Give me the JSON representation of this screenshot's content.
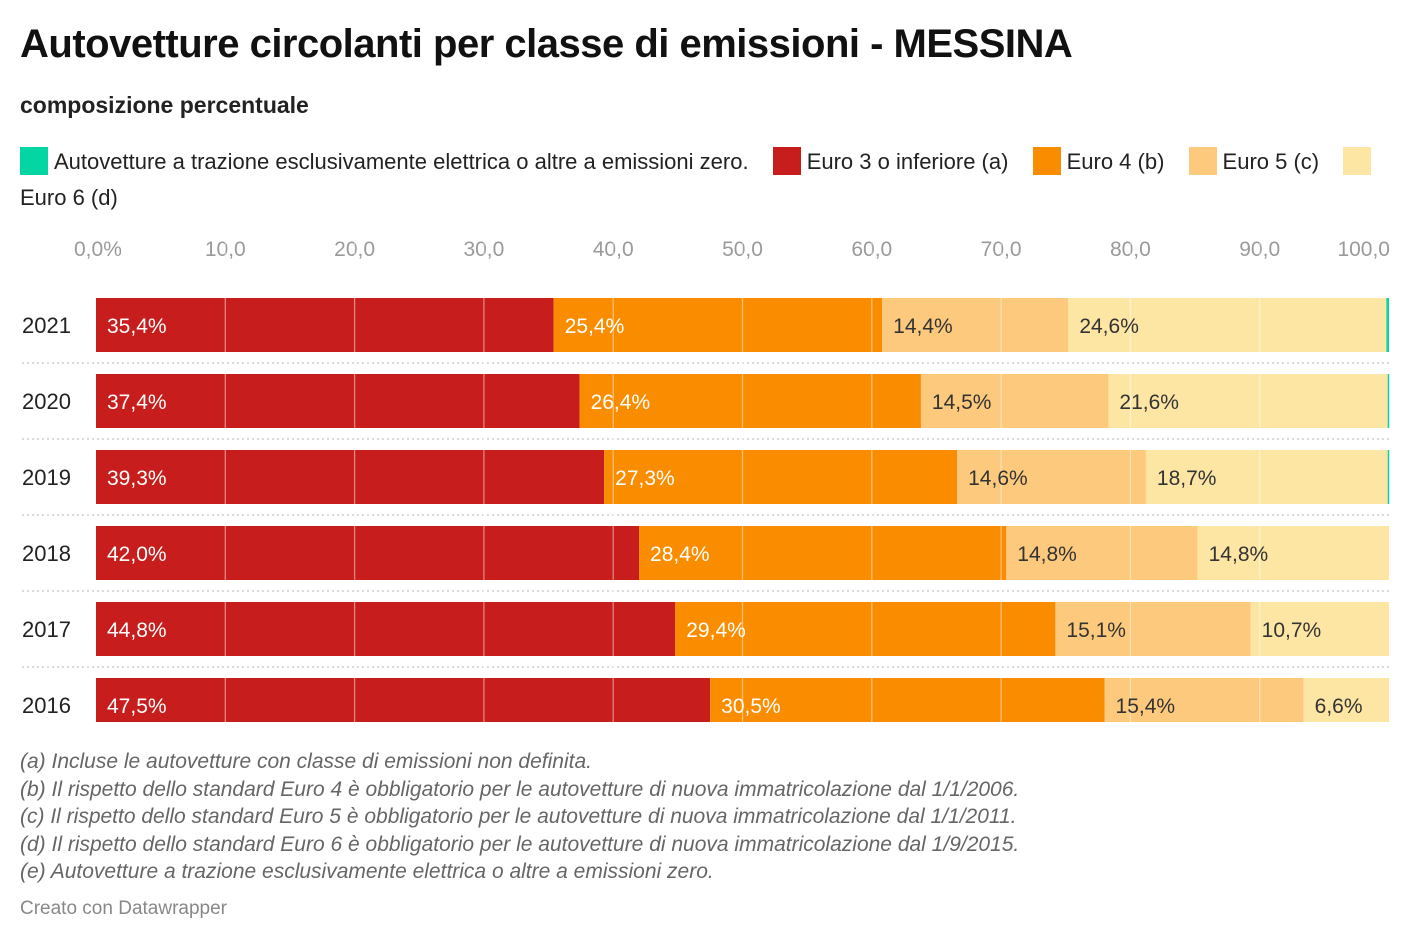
{
  "header": {
    "title": "Autovetture circolanti per classe di emissioni - MESSINA",
    "subtitle": "composizione percentuale"
  },
  "legend": [
    {
      "label": "Autovetture a trazione esclusivamente elettrica o altre a emissioni zero.",
      "color": "#04d6a3"
    },
    {
      "label": "Euro 3 o inferiore (a)",
      "color": "#c71e1d"
    },
    {
      "label": "Euro 4 (b)",
      "color": "#fa8c00"
    },
    {
      "label": "Euro 5 (c)",
      "color": "#fdc97c"
    },
    {
      "label": "Euro 6 (d)",
      "color": "#fde5a4"
    }
  ],
  "chart_data": {
    "type": "bar",
    "orientation": "horizontal",
    "stacked": true,
    "categories": [
      "2021",
      "2020",
      "2019",
      "2018",
      "2017",
      "2016"
    ],
    "series": [
      {
        "name": "Euro 3 o inferiore (a)",
        "color": "#c71e1d",
        "values": [
          35.4,
          37.4,
          39.3,
          42.0,
          44.8,
          47.5
        ],
        "labels": [
          "35,4%",
          "37,4%",
          "39,3%",
          "42,0%",
          "44,8%",
          "47,5%"
        ]
      },
      {
        "name": "Euro 4 (b)",
        "color": "#fa8c00",
        "values": [
          25.4,
          26.4,
          27.3,
          28.4,
          29.4,
          30.5
        ],
        "labels": [
          "25,4%",
          "26,4%",
          "27,3%",
          "28,4%",
          "29,4%",
          "30,5%"
        ]
      },
      {
        "name": "Euro 5 (c)",
        "color": "#fdc97c",
        "values": [
          14.4,
          14.5,
          14.6,
          14.8,
          15.1,
          15.4
        ],
        "labels": [
          "14,4%",
          "14,5%",
          "14,6%",
          "14,8%",
          "15,1%",
          "15,4%"
        ]
      },
      {
        "name": "Euro 6 (d)",
        "color": "#fde5a4",
        "values": [
          24.6,
          21.6,
          18.7,
          14.8,
          10.7,
          6.6
        ],
        "labels": [
          "24,6%",
          "21,6%",
          "18,7%",
          "14,8%",
          "10,7%",
          "6,6%"
        ]
      },
      {
        "name": "Autovetture a trazione esclusivamente elettrica o altre a emissioni zero.",
        "color": "#04d6a3",
        "values": [
          0.2,
          0.1,
          0.1,
          0.0,
          0.0,
          0.0
        ],
        "labels": [
          "",
          "",
          "",
          "",
          "",
          ""
        ]
      }
    ],
    "xlim": [
      0,
      100
    ],
    "xticks": [
      "0,0%",
      "10,0",
      "20,0",
      "30,0",
      "40,0",
      "50,0",
      "60,0",
      "70,0",
      "80,0",
      "90,0",
      "100,0"
    ],
    "grid": true
  },
  "notes": [
    "(a) Incluse le autovetture con classe di emissioni non definita.",
    "(b) Il rispetto dello standard Euro 4 è obbligatorio per le autovetture di nuova immatricolazione dal 1/1/2006.",
    "(c) Il rispetto dello standard Euro 5 è obbligatorio per le autovetture di nuova immatricolazione dal 1/1/2011.",
    "(d) Il rispetto dello standard Euro 6 è obbligatorio per le autovetture di nuova immatricolazione dal 1/9/2015.",
    "(e) Autovetture a trazione esclusivamente elettrica o altre a emissioni zero."
  ],
  "footer": {
    "credit": "Creato con Datawrapper"
  }
}
